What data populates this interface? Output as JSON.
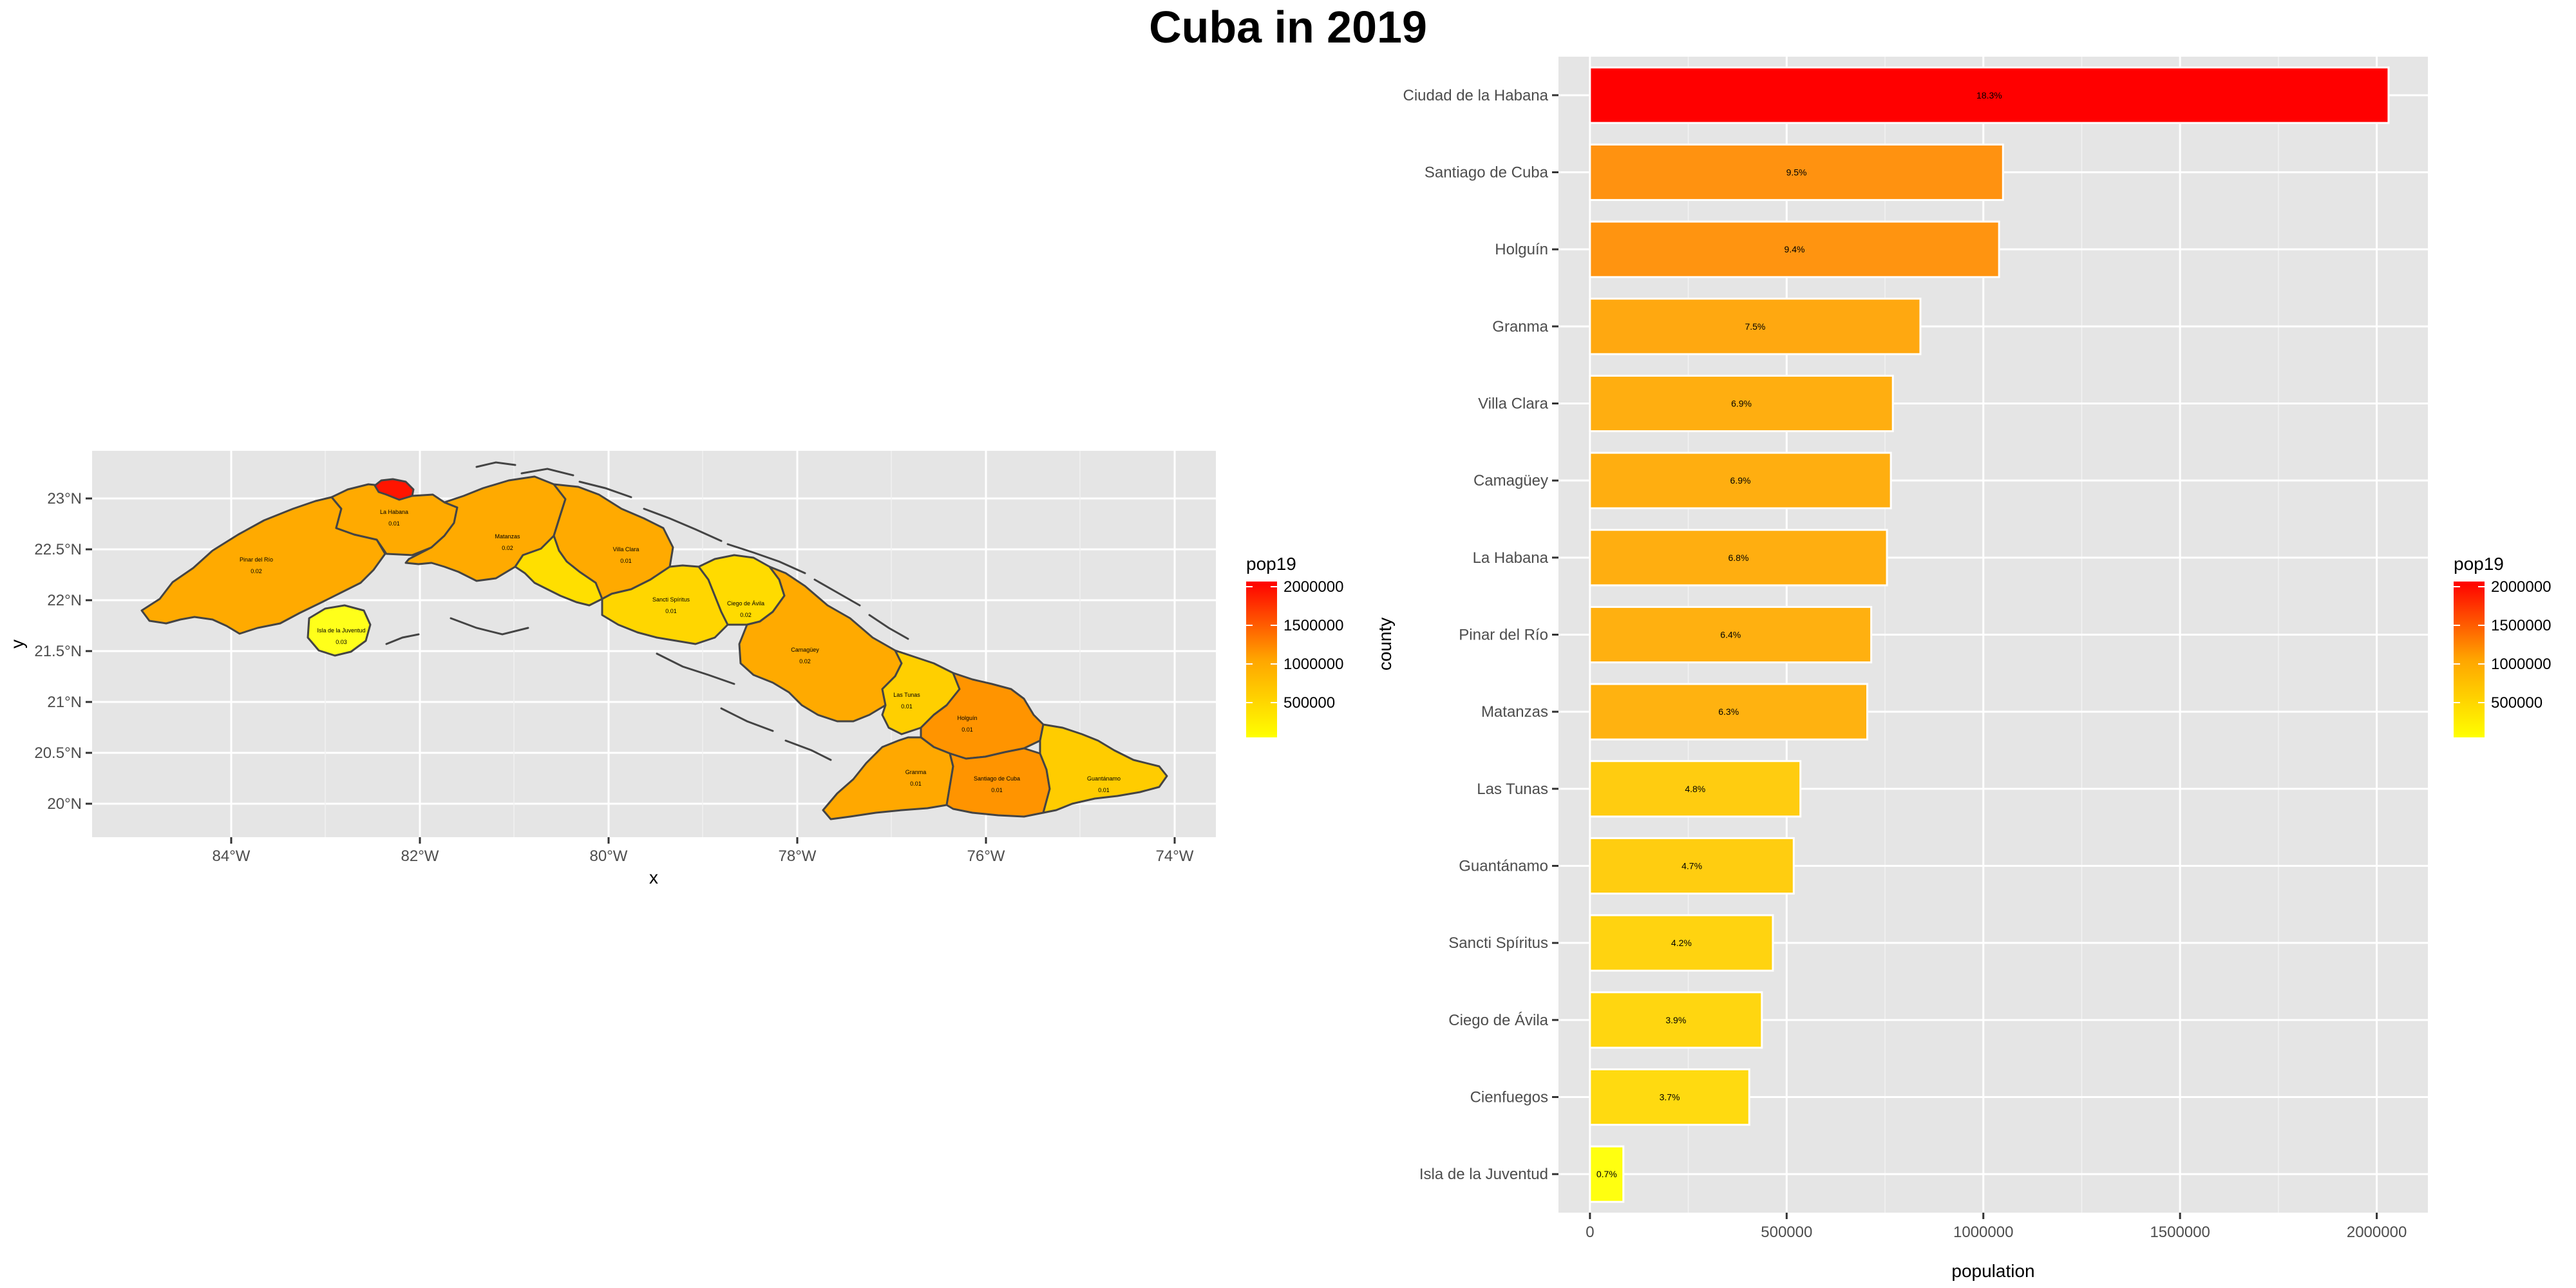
{
  "page": {
    "title": "Cuba in 2019"
  },
  "colors": {
    "panel_bg": "#e5e5e5",
    "grid": "#ffffff",
    "outline": "#444444",
    "low": "#ffff00",
    "mid": "#ffa500",
    "high": "#ff0000"
  },
  "map": {
    "xlabel": "x",
    "ylabel": "y",
    "x_ticks": [
      "84°W",
      "82°W",
      "80°W",
      "78°W",
      "76°W",
      "74°W"
    ],
    "y_ticks": [
      "20°N",
      "20.5°N",
      "21°N",
      "21.5°N",
      "22°N",
      "22.5°N",
      "23°N"
    ],
    "legend": {
      "title": "pop19",
      "labels": [
        "2000000",
        "1500000",
        "1000000",
        "500000"
      ]
    },
    "province_labels": [
      {
        "name": "Pinar del Río",
        "value": "0.02",
        "color": "#ffaa00"
      },
      {
        "name": "La Habana",
        "value": "0.01",
        "color": "#ffaa00"
      },
      {
        "name": "Ciudad de la Habana",
        "value": "",
        "color": "#ff1500"
      },
      {
        "name": "Matanzas",
        "value": "0.02",
        "color": "#ffaa00"
      },
      {
        "name": "Villa Clara",
        "value": "0.01",
        "color": "#ffaa00"
      },
      {
        "name": "Cienfuegos",
        "value": "",
        "color": "#ffdf00"
      },
      {
        "name": "Sancti Spíritus",
        "value": "0.01",
        "color": "#ffd600"
      },
      {
        "name": "Ciego de Ávila",
        "value": "0.02",
        "color": "#ffdb00"
      },
      {
        "name": "Camagüey",
        "value": "0.02",
        "color": "#ffaa00"
      },
      {
        "name": "Las Tunas",
        "value": "0.01",
        "color": "#ffcf00"
      },
      {
        "name": "Holguín",
        "value": "0.01",
        "color": "#ff9400"
      },
      {
        "name": "Granma",
        "value": "0.01",
        "color": "#ffa800"
      },
      {
        "name": "Santiago de Cuba",
        "value": "0.01",
        "color": "#ff9400"
      },
      {
        "name": "Guantánamo",
        "value": "0.01",
        "color": "#ffcc00"
      },
      {
        "name": "Isla de la Juventud",
        "value": "0.03",
        "color": "#ffff1a"
      }
    ]
  },
  "chart_data": {
    "type": "bar",
    "orientation": "horizontal",
    "categories": [
      "Ciudad de la Habana",
      "Santiago de Cuba",
      "Holguín",
      "Granma",
      "Villa Clara",
      "Camagüey",
      "La Habana",
      "Pinar del Río",
      "Matanzas",
      "Las Tunas",
      "Guantánamo",
      "Sancti Spíritus",
      "Ciego de Ávila",
      "Cienfuegos",
      "Isla de la Juventud"
    ],
    "values": [
      2030000,
      1050000,
      1040000,
      840000,
      770000,
      765000,
      755000,
      715000,
      705000,
      535000,
      518000,
      465000,
      437000,
      405000,
      85000
    ],
    "labels": [
      "18.3%",
      "9.5%",
      "9.4%",
      "7.5%",
      "6.9%",
      "6.9%",
      "6.8%",
      "6.4%",
      "6.3%",
      "4.8%",
      "4.7%",
      "4.2%",
      "3.9%",
      "3.7%",
      "0.7%"
    ],
    "colors": [
      "#ff0000",
      "#ff9210",
      "#ff9410",
      "#ffa810",
      "#ffae10",
      "#ffae10",
      "#ffae10",
      "#ffb010",
      "#ffb210",
      "#ffcc10",
      "#ffcd10",
      "#ffd310",
      "#ffd610",
      "#ffda10",
      "#ffff10"
    ],
    "xlabel": "population",
    "ylabel": "county",
    "xlim": [
      0,
      2130000
    ],
    "x_ticks": [
      0,
      500000,
      1000000,
      1500000,
      2000000
    ],
    "x_tick_labels": [
      "0",
      "500000",
      "1000000",
      "1500000",
      "2000000"
    ],
    "legend": {
      "title": "pop19",
      "labels": [
        "2000000",
        "1500000",
        "1000000",
        "500000"
      ],
      "position": "right"
    },
    "grid": true
  }
}
